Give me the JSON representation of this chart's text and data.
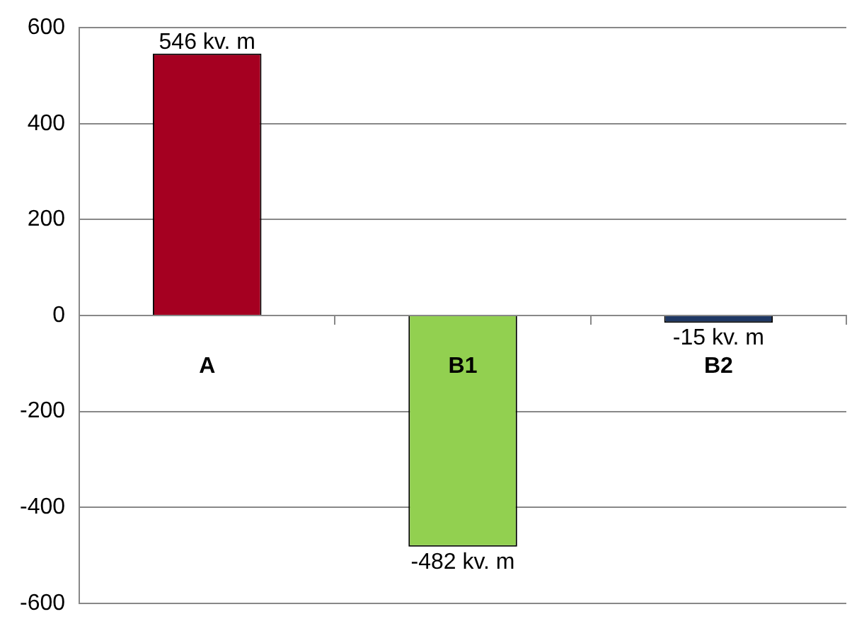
{
  "chart_data": {
    "type": "bar",
    "categories": [
      "A",
      "B1",
      "B2"
    ],
    "values": [
      546,
      -482,
      -15
    ],
    "colors": [
      "#a50021",
      "#92d050",
      "#1f3864"
    ],
    "value_labels": [
      "546 kv. m",
      "-482 kv. m",
      "-15 kv. m"
    ],
    "ylim": [
      -600,
      600
    ],
    "yticks": [
      -600,
      -400,
      -200,
      0,
      200,
      400,
      600
    ],
    "grid": "y",
    "legend": false
  }
}
